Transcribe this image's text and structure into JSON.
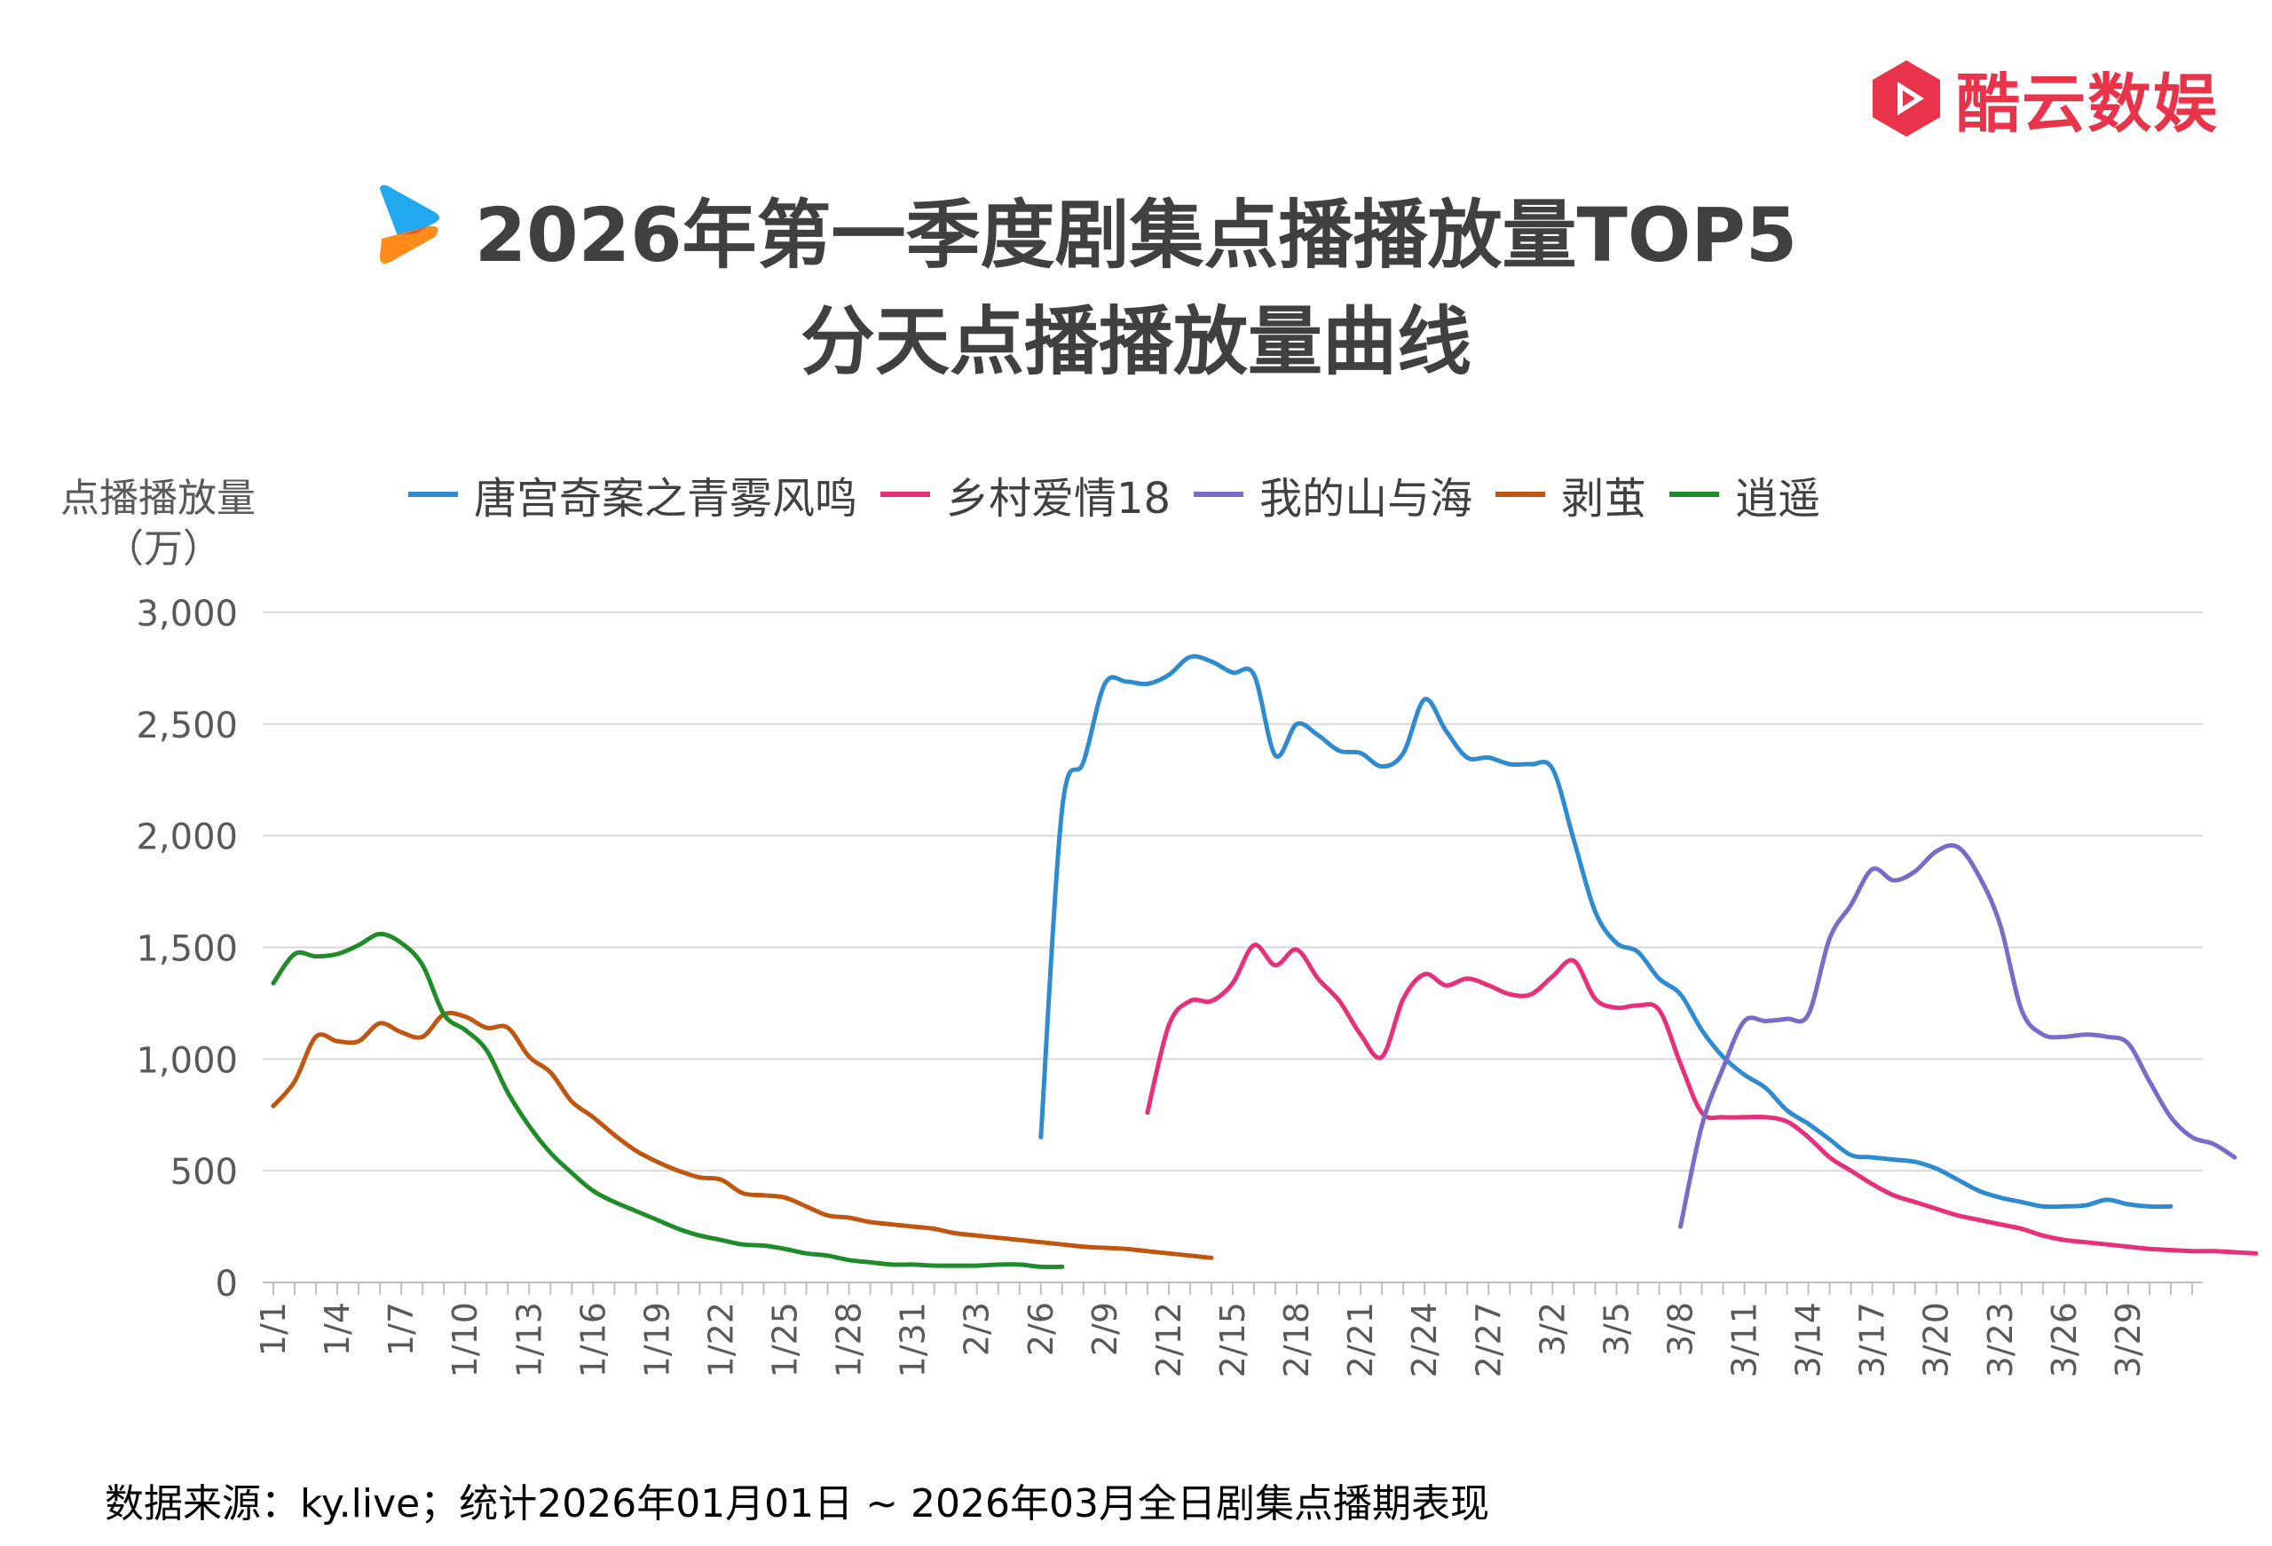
{
  "brand": {
    "logo_text": "酷云数娱",
    "accent": "#e8334a"
  },
  "title": {
    "line1": "2026年第一季度剧集点播播放量TOP5",
    "line2": "分天点播播放量曲线"
  },
  "footer": {
    "source": "数据来源：ky.live；统计2026年01月01日 ~ 2026年03月全日剧集点播期表现"
  },
  "chart_data": {
    "type": "line",
    "ylabel_line1": "点播播放量",
    "ylabel_line2": "（万）",
    "ylim": [
      0,
      3000
    ],
    "yticks": [
      0,
      500,
      1000,
      1500,
      2000,
      2500,
      3000
    ],
    "ytick_labels": [
      "0",
      "500",
      "1,000",
      "1,500",
      "2,000",
      "2,500",
      "3,000"
    ],
    "grid": true,
    "legend_position": "top",
    "days_total": 91,
    "xtick_labels": [
      "1/1",
      "1/4",
      "1/7",
      "1/10",
      "1/13",
      "1/16",
      "1/19",
      "1/22",
      "1/25",
      "1/28",
      "1/31",
      "2/3",
      "2/6",
      "2/9",
      "2/12",
      "2/15",
      "2/18",
      "2/21",
      "2/24",
      "2/27",
      "3/2",
      "3/5",
      "3/8",
      "3/11",
      "3/14",
      "3/17",
      "3/20",
      "3/23",
      "3/26",
      "3/29"
    ],
    "xtick_every": 3,
    "series": [
      {
        "name": "唐宫奇案之青雾风鸣",
        "color": "#2e8bd0",
        "start": 36,
        "values": [
          650,
          2120,
          2330,
          2680,
          2690,
          2680,
          2720,
          2800,
          2780,
          2730,
          2720,
          2360,
          2500,
          2450,
          2380,
          2370,
          2310,
          2370,
          2610,
          2470,
          2350,
          2350,
          2320,
          2320,
          2300,
          1980,
          1660,
          1520,
          1480,
          1360,
          1290,
          1130,
          1010,
          930,
          870,
          770,
          710,
          640,
          570,
          560,
          550,
          540,
          510,
          460,
          410,
          380,
          360,
          340,
          340,
          345,
          370,
          350,
          340,
          340
        ]
      },
      {
        "name": "乡村爱情18",
        "color": "#e8307a",
        "start": 41,
        "values": [
          760,
          1150,
          1260,
          1260,
          1340,
          1510,
          1420,
          1490,
          1360,
          1260,
          1110,
          1010,
          1270,
          1380,
          1330,
          1360,
          1330,
          1290,
          1290,
          1370,
          1440,
          1270,
          1230,
          1240,
          1220,
          980,
          760,
          740,
          740,
          740,
          720,
          650,
          560,
          500,
          440,
          390,
          360,
          330,
          300,
          280,
          260,
          240,
          210,
          190,
          180,
          170,
          160,
          150,
          145,
          140,
          140,
          135,
          130
        ]
      },
      {
        "name": "我的山与海",
        "color": "#7b6bc8",
        "start": 66,
        "values": [
          250,
          700,
          960,
          1170,
          1170,
          1180,
          1200,
          1540,
          1690,
          1850,
          1800,
          1840,
          1930,
          1950,
          1820,
          1600,
          1220,
          1110,
          1100,
          1110,
          1100,
          1070,
          900,
          740,
          650,
          620,
          560
        ]
      },
      {
        "name": "剥茧",
        "color": "#c0560f",
        "start": 0,
        "values": [
          790,
          900,
          1100,
          1080,
          1080,
          1160,
          1120,
          1100,
          1200,
          1190,
          1140,
          1140,
          1010,
          940,
          810,
          740,
          660,
          590,
          540,
          500,
          470,
          460,
          400,
          390,
          380,
          340,
          300,
          290,
          270,
          260,
          250,
          240,
          220,
          210,
          200,
          190,
          180,
          170,
          160,
          155,
          150,
          140,
          130,
          120,
          110
        ]
      },
      {
        "name": "逍遥",
        "color": "#1f8c2a",
        "start": 0,
        "values": [
          1340,
          1470,
          1460,
          1470,
          1510,
          1560,
          1520,
          1420,
          1200,
          1130,
          1040,
          850,
          700,
          580,
          490,
          410,
          360,
          320,
          280,
          240,
          210,
          190,
          170,
          165,
          150,
          130,
          120,
          100,
          90,
          80,
          80,
          75,
          75,
          75,
          80,
          80,
          70,
          70
        ]
      }
    ]
  }
}
